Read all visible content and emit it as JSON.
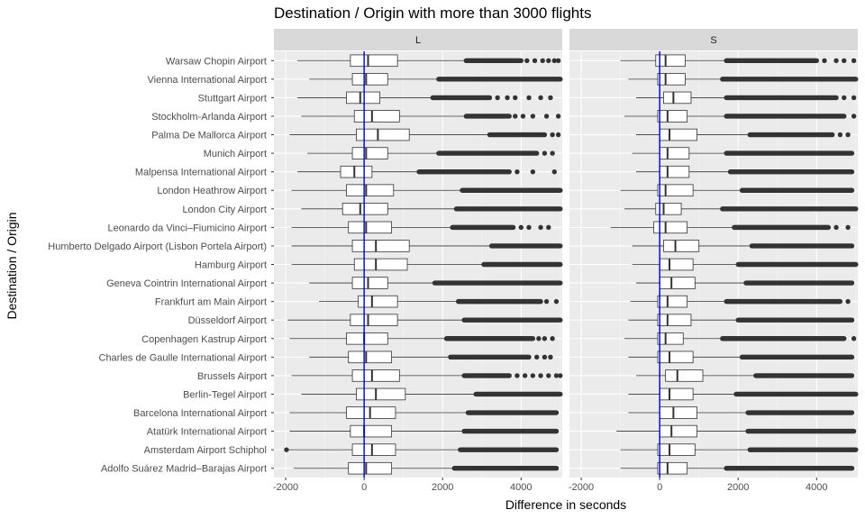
{
  "chart_data": {
    "type": "boxplot",
    "title": "Destination / Origin with more than 3000 flights",
    "xlabel": "Difference in seconds",
    "ylabel": "Destination / Origin",
    "xlim": [
      -2300,
      5050
    ],
    "x_ticks": [
      -2000,
      0,
      2000,
      4000
    ],
    "x_tick_labels": [
      "-2000",
      "0",
      "2000",
      "4000"
    ],
    "reference_line": {
      "x": 0,
      "color": "#0000cc"
    },
    "grid": true,
    "facets": [
      "L",
      "S"
    ],
    "categories": [
      "Warsaw Chopin Airport",
      "Vienna International Airport",
      "Stuttgart Airport",
      "Stockholm-Arlanda Airport",
      "Palma De Mallorca Airport",
      "Munich Airport",
      "Malpensa International Airport",
      "London Heathrow Airport",
      "London City Airport",
      "Leonardo da Vinci–Fiumicino Airport",
      "Humberto Delgado Airport (Lisbon Portela Airport)",
      "Hamburg Airport",
      "Geneva Cointrin International Airport",
      "Frankfurt am Main Airport",
      "Düsseldorf Airport",
      "Copenhagen Kastrup Airport",
      "Charles de Gaulle International Airport",
      "Brussels Airport",
      "Berlin-Tegel Airport",
      "Barcelona International Airport",
      "Atatürk International Airport",
      "Amsterdam Airport Schiphol",
      "Adolfo Suárez Madrid–Barajas Airport"
    ],
    "series": [
      {
        "facet": "L",
        "boxes": [
          {
            "wmin": -1700,
            "q1": -350,
            "median": 100,
            "q3": 850,
            "wmax": 2600,
            "out_dense": [
              2600,
              4000
            ],
            "out_sparse": [
              4150,
              4350,
              4550,
              4700,
              4850,
              4950
            ]
          },
          {
            "wmin": -1400,
            "q1": -300,
            "median": 50,
            "q3": 600,
            "wmax": 1900,
            "out_dense": [
              1900,
              5000
            ],
            "out_sparse": []
          },
          {
            "wmin": -1700,
            "q1": -450,
            "median": -100,
            "q3": 400,
            "wmax": 1750,
            "out_dense": [
              1750,
              3200
            ],
            "out_sparse": [
              3400,
              3650,
              3850,
              4200,
              4500,
              4750
            ]
          },
          {
            "wmin": -1600,
            "q1": -250,
            "median": 200,
            "q3": 900,
            "wmax": 2600,
            "out_dense": [
              2600,
              3700
            ],
            "out_sparse": [
              3850,
              4050,
              4300,
              4650,
              4950
            ]
          },
          {
            "wmin": -1900,
            "q1": -200,
            "median": 350,
            "q3": 1150,
            "wmax": 3200,
            "out_dense": [
              3200,
              4600
            ],
            "out_sparse": [
              4800,
              4950
            ]
          },
          {
            "wmin": -1450,
            "q1": -300,
            "median": 50,
            "q3": 600,
            "wmax": 1900,
            "out_dense": [
              1900,
              4400
            ],
            "out_sparse": [
              4600,
              4800
            ]
          },
          {
            "wmin": -1700,
            "q1": -600,
            "median": -250,
            "q3": 200,
            "wmax": 1400,
            "out_dense": [
              1400,
              3700
            ],
            "out_sparse": [
              3900,
              4300,
              4850
            ]
          },
          {
            "wmin": -1850,
            "q1": -450,
            "median": 50,
            "q3": 750,
            "wmax": 2500,
            "out_dense": [
              2500,
              5000
            ],
            "out_sparse": []
          },
          {
            "wmin": -1600,
            "q1": -550,
            "median": -100,
            "q3": 600,
            "wmax": 2350,
            "out_dense": [
              2350,
              5000
            ],
            "out_sparse": []
          },
          {
            "wmin": -1850,
            "q1": -400,
            "median": 50,
            "q3": 700,
            "wmax": 2250,
            "out_dense": [
              2250,
              3800
            ],
            "out_sparse": [
              4000,
              4200,
              4500,
              4700
            ]
          },
          {
            "wmin": -1850,
            "q1": -300,
            "median": 300,
            "q3": 1150,
            "wmax": 3250,
            "out_dense": [
              3250,
              5000
            ],
            "out_sparse": []
          },
          {
            "wmin": -1850,
            "q1": -250,
            "median": 300,
            "q3": 1100,
            "wmax": 3050,
            "out_dense": [
              3050,
              5000
            ],
            "out_sparse": []
          },
          {
            "wmin": -1400,
            "q1": -300,
            "median": 100,
            "q3": 600,
            "wmax": 1800,
            "out_dense": [
              1800,
              5000
            ],
            "out_sparse": []
          },
          {
            "wmin": -1150,
            "q1": -150,
            "median": 200,
            "q3": 850,
            "wmax": 2400,
            "out_dense": [
              2400,
              4500
            ],
            "out_sparse": [
              4650,
              4900
            ]
          },
          {
            "wmin": -1950,
            "q1": -350,
            "median": 100,
            "q3": 850,
            "wmax": 2550,
            "out_dense": [
              2550,
              5000
            ],
            "out_sparse": []
          },
          {
            "wmin": -1900,
            "q1": -450,
            "median": 0,
            "q3": 600,
            "wmax": 2100,
            "out_dense": [
              2100,
              4300
            ],
            "out_sparse": [
              4450,
              4600,
              4800
            ]
          },
          {
            "wmin": -1400,
            "q1": -400,
            "median": 50,
            "q3": 700,
            "wmax": 2200,
            "out_dense": [
              2200,
              4200
            ],
            "out_sparse": [
              4400,
              4600,
              4750
            ]
          },
          {
            "wmin": -1850,
            "q1": -300,
            "median": 200,
            "q3": 900,
            "wmax": 2550,
            "out_dense": [
              2550,
              3700
            ],
            "out_sparse": [
              3900,
              4100,
              4300,
              4500,
              4700,
              4900,
              5000
            ]
          },
          {
            "wmin": -1600,
            "q1": -200,
            "median": 300,
            "q3": 1050,
            "wmax": 2850,
            "out_dense": [
              2850,
              5000
            ],
            "out_sparse": []
          },
          {
            "wmin": -1900,
            "q1": -450,
            "median": 150,
            "q3": 800,
            "wmax": 2650,
            "out_dense": [
              2650,
              4900
            ],
            "out_sparse": []
          },
          {
            "wmin": -1900,
            "q1": -350,
            "median": 0,
            "q3": 700,
            "wmax": 2550,
            "out_dense": [
              2550,
              4900
            ],
            "out_sparse": []
          },
          {
            "wmin": -1950,
            "q1": -300,
            "median": 200,
            "q3": 800,
            "wmax": 2450,
            "out_dense": [
              2450,
              4900
            ],
            "out_sparse": [
              -1980
            ]
          },
          {
            "wmin": -1800,
            "q1": -400,
            "median": 50,
            "q3": 700,
            "wmax": 2300,
            "out_dense": [
              2300,
              4900
            ],
            "out_sparse": []
          }
        ]
      },
      {
        "facet": "S",
        "boxes": [
          {
            "wmin": -1000,
            "q1": -100,
            "median": 150,
            "q3": 650,
            "wmax": 1700,
            "out_dense": [
              1700,
              4000
            ],
            "out_sparse": [
              4200,
              4500,
              4700,
              4950
            ]
          },
          {
            "wmin": -800,
            "q1": -50,
            "median": 150,
            "q3": 650,
            "wmax": 1600,
            "out_dense": [
              1600,
              5000
            ],
            "out_sparse": []
          },
          {
            "wmin": -600,
            "q1": 100,
            "median": 350,
            "q3": 800,
            "wmax": 1700,
            "out_dense": [
              1700,
              4500
            ],
            "out_sparse": [
              4700,
              4950
            ]
          },
          {
            "wmin": -900,
            "q1": -50,
            "median": 200,
            "q3": 700,
            "wmax": 1700,
            "out_dense": [
              1700,
              4700
            ],
            "out_sparse": [
              4950
            ]
          },
          {
            "wmin": -600,
            "q1": 0,
            "median": 250,
            "q3": 950,
            "wmax": 2300,
            "out_dense": [
              2300,
              4400
            ],
            "out_sparse": [
              4600,
              4800
            ]
          },
          {
            "wmin": -700,
            "q1": 0,
            "median": 200,
            "q3": 750,
            "wmax": 1700,
            "out_dense": [
              1700,
              4900
            ],
            "out_sparse": []
          },
          {
            "wmin": -600,
            "q1": 0,
            "median": 200,
            "q3": 750,
            "wmax": 1800,
            "out_dense": [
              1800,
              4900
            ],
            "out_sparse": []
          },
          {
            "wmin": -1000,
            "q1": -50,
            "median": 150,
            "q3": 850,
            "wmax": 2100,
            "out_dense": [
              2100,
              4900
            ],
            "out_sparse": []
          },
          {
            "wmin": -900,
            "q1": -100,
            "median": 100,
            "q3": 550,
            "wmax": 1600,
            "out_dense": [
              1600,
              5000
            ],
            "out_sparse": []
          },
          {
            "wmin": -1250,
            "q1": -150,
            "median": 150,
            "q3": 700,
            "wmax": 1900,
            "out_dense": [
              1900,
              4300
            ],
            "out_sparse": [
              4500,
              4800
            ]
          },
          {
            "wmin": -700,
            "q1": 100,
            "median": 400,
            "q3": 1000,
            "wmax": 2350,
            "out_dense": [
              2350,
              4900
            ],
            "out_sparse": []
          },
          {
            "wmin": -700,
            "q1": 0,
            "median": 250,
            "q3": 850,
            "wmax": 2000,
            "out_dense": [
              2000,
              5000
            ],
            "out_sparse": []
          },
          {
            "wmin": -600,
            "q1": 0,
            "median": 300,
            "q3": 900,
            "wmax": 2200,
            "out_dense": [
              2200,
              4900
            ],
            "out_sparse": []
          },
          {
            "wmin": -750,
            "q1": -50,
            "median": 200,
            "q3": 700,
            "wmax": 1700,
            "out_dense": [
              1700,
              4600
            ],
            "out_sparse": [
              4800
            ]
          },
          {
            "wmin": -800,
            "q1": -50,
            "median": 200,
            "q3": 800,
            "wmax": 2000,
            "out_dense": [
              2000,
              4900
            ],
            "out_sparse": []
          },
          {
            "wmin": -900,
            "q1": -50,
            "median": 150,
            "q3": 600,
            "wmax": 1600,
            "out_dense": [
              1600,
              4700
            ],
            "out_sparse": [
              4950
            ]
          },
          {
            "wmin": -800,
            "q1": -50,
            "median": 250,
            "q3": 850,
            "wmax": 2100,
            "out_dense": [
              2100,
              4900
            ],
            "out_sparse": []
          },
          {
            "wmin": -600,
            "q1": 150,
            "median": 450,
            "q3": 1100,
            "wmax": 2450,
            "out_dense": [
              2450,
              4900
            ],
            "out_sparse": []
          },
          {
            "wmin": -800,
            "q1": 0,
            "median": 250,
            "q3": 850,
            "wmax": 1950,
            "out_dense": [
              1950,
              5000
            ],
            "out_sparse": []
          },
          {
            "wmin": -800,
            "q1": 0,
            "median": 350,
            "q3": 950,
            "wmax": 2250,
            "out_dense": [
              2250,
              4900
            ],
            "out_sparse": []
          },
          {
            "wmin": -1100,
            "q1": 0,
            "median": 300,
            "q3": 950,
            "wmax": 2250,
            "out_dense": [
              2250,
              4950
            ],
            "out_sparse": []
          },
          {
            "wmin": -1000,
            "q1": -50,
            "median": 250,
            "q3": 900,
            "wmax": 2300,
            "out_dense": [
              2300,
              5000
            ],
            "out_sparse": []
          },
          {
            "wmin": -1000,
            "q1": -50,
            "median": 200,
            "q3": 700,
            "wmax": 1700,
            "out_dense": [
              1700,
              4900
            ],
            "out_sparse": []
          }
        ]
      }
    ]
  }
}
